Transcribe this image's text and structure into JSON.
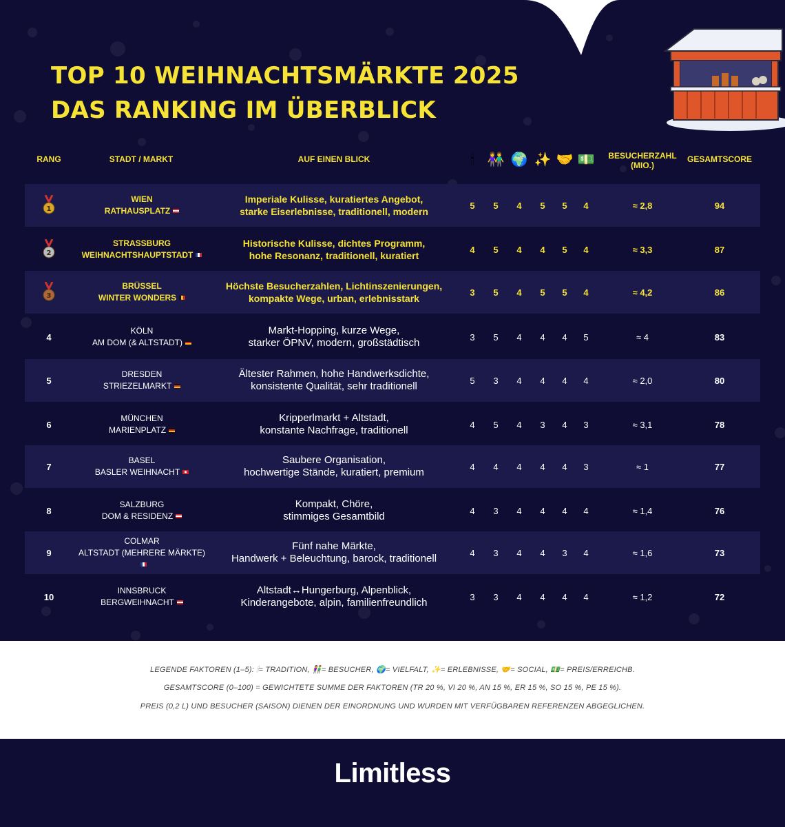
{
  "header": {
    "title_line1": "TOP 10 WEIHNACHTSMÄRKTE 2025",
    "title_line2": "DAS RANKING IM ÜBERBLICK"
  },
  "columns": {
    "rank": "RANG",
    "city": "STADT / MARKT",
    "summary": "AUF EINEN BLICK",
    "visitors": "BESUCHERZAHL (MIO.)",
    "score": "GESAMTSCORE",
    "factor_icons": [
      {
        "glyph": "🕯",
        "name": "tradition-icon"
      },
      {
        "glyph": "👫",
        "name": "visitors-icon"
      },
      {
        "glyph": "🌍",
        "name": "variety-icon"
      },
      {
        "glyph": "✨",
        "name": "experience-icon"
      },
      {
        "glyph": "🤝",
        "name": "social-icon"
      },
      {
        "glyph": "💵",
        "name": "price-icon"
      }
    ]
  },
  "rows": [
    {
      "rank": "1",
      "medal": "gold",
      "city": "WIEN",
      "market": "RATHAUSPLATZ",
      "flag": "AT",
      "summary1": "Imperiale Kulisse, kuratiertes Angebot,",
      "summary2": "starke Eiserlebnisse, traditionell, modern",
      "f": [
        "5",
        "5",
        "4",
        "5",
        "5",
        "4"
      ],
      "visitors": "≈ 2,8",
      "score": "94"
    },
    {
      "rank": "2",
      "medal": "silver",
      "city": "STRASSBURG",
      "market": "WEIHNACHTSHAUPTSTADT",
      "flag": "FR",
      "summary1": "Historische Kulisse, dichtes Programm,",
      "summary2": "hohe Resonanz, traditionell, kuratiert",
      "f": [
        "4",
        "5",
        "4",
        "4",
        "5",
        "4"
      ],
      "visitors": "≈ 3,3",
      "score": "87"
    },
    {
      "rank": "3",
      "medal": "bronze",
      "city": "BRÜSSEL",
      "market": "WINTER WONDERS",
      "flag": "BE",
      "summary1": "Höchste Besucherzahlen, Lichtinszenierungen,",
      "summary2": "kompakte Wege, urban, erlebnisstark",
      "f": [
        "3",
        "5",
        "4",
        "5",
        "5",
        "4"
      ],
      "visitors": "≈ 4,2",
      "score": "86"
    },
    {
      "rank": "4",
      "medal": "",
      "city": "KÖLN",
      "market": "AM DOM (& ALTSTADT)",
      "flag": "DE",
      "summary1": "Markt-Hopping, kurze Wege,",
      "summary2": "starker ÖPNV, modern, großstädtisch",
      "f": [
        "3",
        "5",
        "4",
        "4",
        "4",
        "5"
      ],
      "visitors": "≈ 4",
      "score": "83"
    },
    {
      "rank": "5",
      "medal": "",
      "city": "DRESDEN",
      "market": "STRIEZELMARKT",
      "flag": "DE",
      "summary1": "Ältester Rahmen, hohe Handwerksdichte,",
      "summary2": "konsistente Qualität, sehr traditionell",
      "f": [
        "5",
        "3",
        "4",
        "4",
        "4",
        "4"
      ],
      "visitors": "≈ 2,0",
      "score": "80"
    },
    {
      "rank": "6",
      "medal": "",
      "city": "MÜNCHEN",
      "market": "MARIENPLATZ",
      "flag": "DE",
      "summary1": "Kripperlmarkt + Altstadt,",
      "summary2": "konstante Nachfrage, traditionell",
      "f": [
        "4",
        "5",
        "4",
        "3",
        "4",
        "3"
      ],
      "visitors": "≈ 3,1",
      "score": "78"
    },
    {
      "rank": "7",
      "medal": "",
      "city": "BASEL",
      "market": "BASLER WEIHNACHT",
      "flag": "CH",
      "summary1": "Saubere Organisation,",
      "summary2": "hochwertige Stände, kuratiert, premium",
      "f": [
        "4",
        "4",
        "4",
        "4",
        "4",
        "3"
      ],
      "visitors": "≈ 1",
      "score": "77"
    },
    {
      "rank": "8",
      "medal": "",
      "city": "SALZBURG",
      "market": "DOM & RESIDENZ",
      "flag": "AT",
      "summary1": "Kompakt, Chöre,",
      "summary2": "stimmiges Gesamtbild",
      "f": [
        "4",
        "3",
        "4",
        "4",
        "4",
        "4"
      ],
      "visitors": "≈ 1,4",
      "score": "76"
    },
    {
      "rank": "9",
      "medal": "",
      "city": "COLMAR",
      "market": "ALTSTADT (MEHRERE MÄRKTE)",
      "flag": "FR",
      "summary1": "Fünf nahe Märkte,",
      "summary2": "Handwerk + Beleuchtung, barock, traditionell",
      "f": [
        "4",
        "3",
        "4",
        "4",
        "3",
        "4"
      ],
      "visitors": "≈ 1,6",
      "score": "73"
    },
    {
      "rank": "10",
      "medal": "",
      "city": "INNSBRUCK",
      "market": "BERGWEIHNACHT",
      "flag": "AT",
      "summary1": "Altstadt↔Hungerburg, Alpenblick,",
      "summary2": "Kinderangebote, alpin, familienfreundlich",
      "f": [
        "3",
        "3",
        "4",
        "4",
        "4",
        "4"
      ],
      "visitors": "≈ 1,2",
      "score": "72"
    }
  ],
  "legend": {
    "line1": "LEGENDE FAKTOREN (1–5): 🕯= TRADITION, 👫= BESUCHER, 🌍= VIELFALT, ✨= ERLEBNISSE, 🤝= SOCIAL, 💵= PREIS/ERREICHB.",
    "line2": "GESAMTSCORE (0–100) = GEWICHTETE SUMME DER FAKTOREN (TR 20 %, VI 20 %, AN 15 %, ER 15 %, SO 15 %, PE 15 %).",
    "line3": "PREIS (0,2 L) UND BESUCHER (SAISON) DIENEN DER EINORDNUNG UND WURDEN MIT VERFÜGBAREN REFERENZEN ABGEGLICHEN."
  },
  "footer": {
    "logo": "Limitless"
  },
  "colors": {
    "background": "#0f0d33",
    "row_alt": "#1b1a4a",
    "accent": "#f6e336",
    "gold": "#d9a62b",
    "silver": "#b9bcc4",
    "bronze": "#b0663a"
  }
}
